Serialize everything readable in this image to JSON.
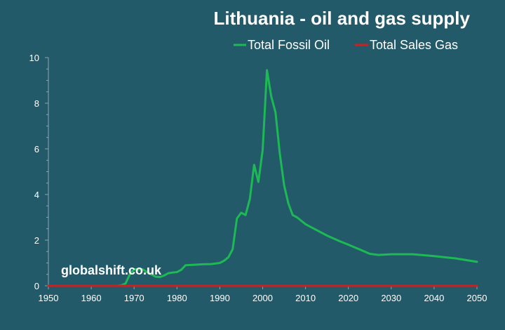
{
  "chart_data": {
    "type": "line",
    "title": "Lithuania - oil and gas supply",
    "xlabel": "",
    "ylabel": "",
    "xlim": [
      1950,
      2050
    ],
    "ylim": [
      0,
      10
    ],
    "x_ticks": [
      1950,
      1960,
      1970,
      1980,
      1990,
      2000,
      2010,
      2020,
      2030,
      2040,
      2050
    ],
    "y_ticks": [
      0,
      2,
      4,
      6,
      8,
      10
    ],
    "grid": false,
    "legend_position": "top-right",
    "watermark": "globalshift.co.uk",
    "series": [
      {
        "name": "Total Fossil Oil",
        "color": "#1db954",
        "x": [
          1950,
          1966,
          1967,
          1968,
          1969,
          1970,
          1971,
          1972,
          1973,
          1974,
          1975,
          1976,
          1977,
          1978,
          1979,
          1980,
          1981,
          1982,
          1984,
          1986,
          1988,
          1990,
          1991,
          1992,
          1993,
          1994,
          1995,
          1996,
          1997,
          1998,
          1999,
          2000,
          2001,
          2002,
          2003,
          2004,
          2005,
          2006,
          2007,
          2008,
          2010,
          2012,
          2015,
          2018,
          2020,
          2025,
          2027,
          2030,
          2035,
          2040,
          2045,
          2050
        ],
        "values": [
          0,
          0,
          0.02,
          0.1,
          0.5,
          0.72,
          0.73,
          0.72,
          0.6,
          0.5,
          0.4,
          0.38,
          0.45,
          0.55,
          0.58,
          0.6,
          0.7,
          0.9,
          0.92,
          0.94,
          0.95,
          1.0,
          1.1,
          1.25,
          1.6,
          2.95,
          3.2,
          3.1,
          3.8,
          5.3,
          4.55,
          5.95,
          9.45,
          8.3,
          7.6,
          5.8,
          4.4,
          3.6,
          3.1,
          3.0,
          2.7,
          2.5,
          2.2,
          1.95,
          1.8,
          1.4,
          1.35,
          1.38,
          1.38,
          1.3,
          1.2,
          1.05
        ]
      },
      {
        "name": "Total Sales Gas",
        "color": "#cc1f1f",
        "x": [
          1950,
          2050
        ],
        "values": [
          0,
          0
        ]
      }
    ]
  }
}
